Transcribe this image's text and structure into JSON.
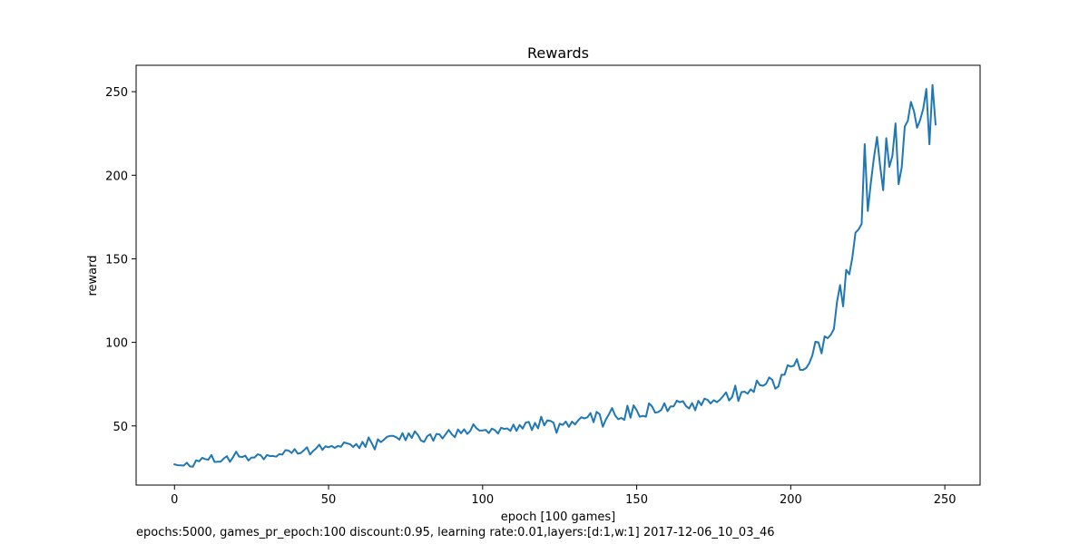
{
  "chart_data": {
    "type": "line",
    "title": "Rewards",
    "xlabel": "epoch [100 games]",
    "ylabel": "reward",
    "xlim": [
      -12.45,
      261.45
    ],
    "ylim": [
      14.6,
      265.8
    ],
    "x_ticks": [
      0,
      50,
      100,
      150,
      200,
      250
    ],
    "y_ticks": [
      50,
      100,
      150,
      200,
      250
    ],
    "grid": false,
    "series_color": "#1f77b4",
    "series": [
      {
        "x_start": 0,
        "x_step": 1,
        "values": [
          27.0,
          26.5,
          26.4,
          26.3,
          28.0,
          25.8,
          25.6,
          29.4,
          28.8,
          30.9,
          30.1,
          29.8,
          32.6,
          28.4,
          28.6,
          28.6,
          30.5,
          31.9,
          28.5,
          31.3,
          34.6,
          31.6,
          31.4,
          32.2,
          29.3,
          31.1,
          31.1,
          33.0,
          32.4,
          30.0,
          32.6,
          31.9,
          32.0,
          31.6,
          33.1,
          32.8,
          35.5,
          35.3,
          33.8,
          36.1,
          33.4,
          33.8,
          35.4,
          37.2,
          32.9,
          35.0,
          36.6,
          38.8,
          35.6,
          37.8,
          37.2,
          38.0,
          36.8,
          38.0,
          37.5,
          40.1,
          39.6,
          39.0,
          37.4,
          39.2,
          36.7,
          40.5,
          37.4,
          43.1,
          39.7,
          35.9,
          42.0,
          40.3,
          41.8,
          43.5,
          44.0,
          44.0,
          43.2,
          41.8,
          45.7,
          41.4,
          45.6,
          42.8,
          46.8,
          44.6,
          41.3,
          40.4,
          43.8,
          45.0,
          41.1,
          45.2,
          44.9,
          42.5,
          45.0,
          47.6,
          45.0,
          43.2,
          47.9,
          45.6,
          48.0,
          45.2,
          47.0,
          51.0,
          48.6,
          47.2,
          47.3,
          47.6,
          45.7,
          48.4,
          47.4,
          45.4,
          48.9,
          48.2,
          48.5,
          47.0,
          50.8,
          47.0,
          50.6,
          48.4,
          52.0,
          52.4,
          47.5,
          51.8,
          48.5,
          55.5,
          50.3,
          53.3,
          53.0,
          52.0,
          45.8,
          51.3,
          50.6,
          52.6,
          49.4,
          52.6,
          50.9,
          53.3,
          55.2,
          54.5,
          55.1,
          57.7,
          52.2,
          58.4,
          57.0,
          49.5,
          53.8,
          57.0,
          60.7,
          56.3,
          54.0,
          54.8,
          53.6,
          62.1,
          54.9,
          62.3,
          59.4,
          55.5,
          56.0,
          55.5,
          63.5,
          61.6,
          57.9,
          58.3,
          59.6,
          63.6,
          58.8,
          61.7,
          61.7,
          65.1,
          64.2,
          64.8,
          61.9,
          60.4,
          63.7,
          59.4,
          65.0,
          62.4,
          66.3,
          65.6,
          63.4,
          65.4,
          64.2,
          65.6,
          67.7,
          70.1,
          65.2,
          67.4,
          74.1,
          64.9,
          70.2,
          70.5,
          69.3,
          71.9,
          70.3,
          77.2,
          74.4,
          74.0,
          75.2,
          79.0,
          77.6,
          72.3,
          73.6,
          80.6,
          80.6,
          86.3,
          85.5,
          86.0,
          89.9,
          83.6,
          83.5,
          84.6,
          87.5,
          92.1,
          100.4,
          100.0,
          93.4,
          103.6,
          102.5,
          104.5,
          108.0,
          124.0,
          134.3,
          121.5,
          143.4,
          140.7,
          150.9,
          165.6,
          167.6,
          170.8,
          218.6,
          178.6,
          195.5,
          210.6,
          222.9,
          205.6,
          191.0,
          222.2,
          205.0,
          211.7,
          231.0,
          194.6,
          204.6,
          229.1,
          232.6,
          243.9,
          238.3,
          228.4,
          233.1,
          239.8,
          251.6,
          218.5,
          254.0,
          230.4
        ]
      }
    ]
  },
  "caption": "epochs:5000, games_pr_epoch:100 discount:0.95, learning rate:0.01,layers:[d:1,w:1] 2017-12-06_10_03_46"
}
